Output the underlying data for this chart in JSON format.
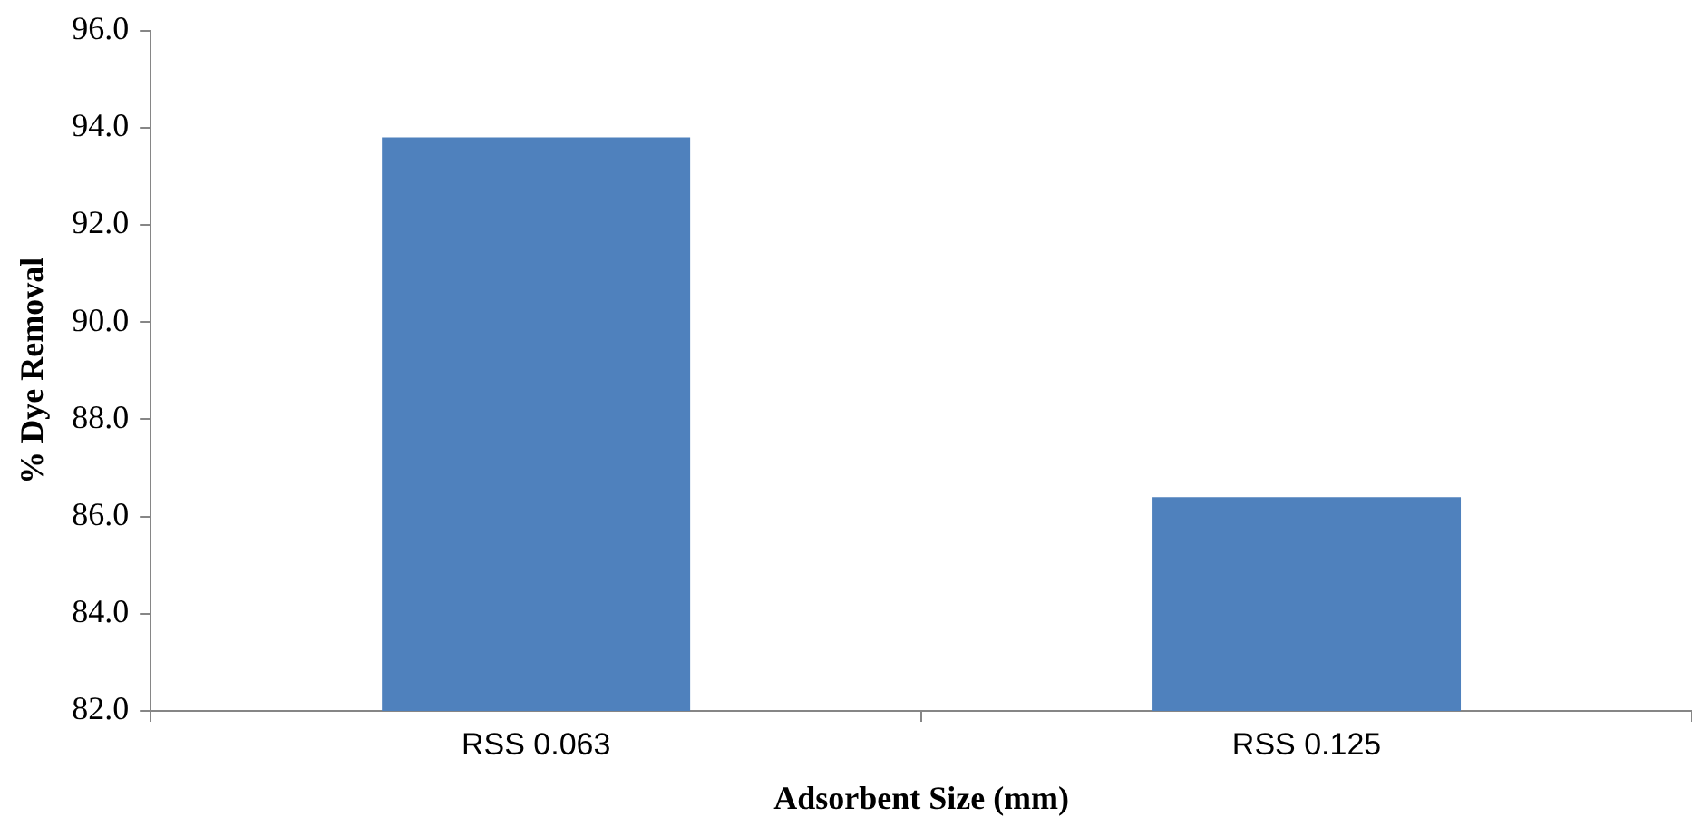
{
  "chart_data": {
    "type": "bar",
    "xlabel": "Adsorbent Size (mm)",
    "ylabel": "% Dye Removal",
    "categories": [
      "RSS 0.063",
      "RSS 0.125"
    ],
    "values": [
      93.8,
      86.4
    ],
    "color": "#4f81bd",
    "ylim": [
      82,
      96
    ],
    "yticks": [
      {
        "value": 82,
        "label": "82.0"
      },
      {
        "value": 84,
        "label": "84.0"
      },
      {
        "value": 86,
        "label": "86.0"
      },
      {
        "value": 88,
        "label": "88.0"
      },
      {
        "value": 90,
        "label": "90.0"
      },
      {
        "value": 92,
        "label": "92.0"
      },
      {
        "value": 94,
        "label": "94.0"
      },
      {
        "value": 96,
        "label": "96.0"
      }
    ],
    "grid": false,
    "legend": false
  }
}
